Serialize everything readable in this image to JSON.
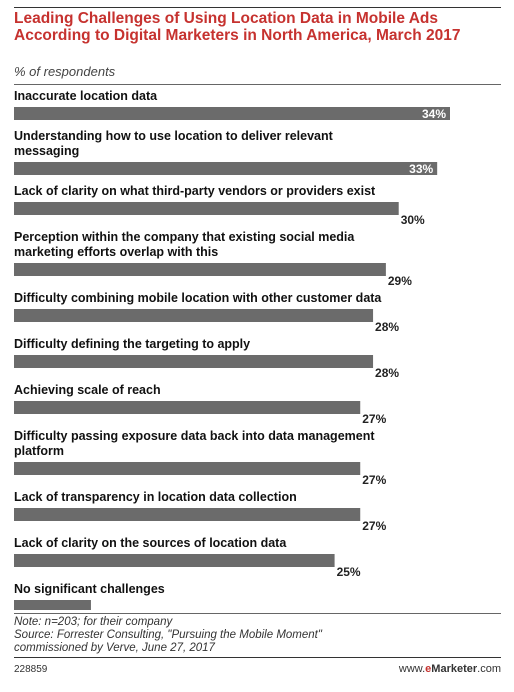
{
  "header": {
    "title": "Leading Challenges of Using Location Data in Mobile Ads According to Digital Marketers in North America, March 2017",
    "subtitle": "% of respondents"
  },
  "footer": {
    "note_line1": "Note: n=203; for their company",
    "note_line2": "Source: Forrester Consulting, \"Pursuing the Mobile Moment\"",
    "note_line3": "commissioned by Verve, June 27, 2017",
    "chart_id": "228859",
    "brand_prefix": "www.",
    "brand_e": "e",
    "brand_name": "Marketer",
    "brand_suffix": ".com"
  },
  "colors": {
    "title": "#c6322f",
    "bar": "#6b6b6b",
    "bar_label_inside": "#ffffff",
    "bar_label_outside": "#222222"
  },
  "chart_data": {
    "type": "bar",
    "orientation": "horizontal",
    "categories": [
      [
        "Inaccurate location data"
      ],
      [
        "Understanding how to use location to deliver relevant",
        "messaging"
      ],
      [
        "Lack of clarity on what third-party vendors or providers exist"
      ],
      [
        "Perception within the company that existing social media",
        "marketing efforts overlap with this"
      ],
      [
        "Difficulty combining mobile location with other customer data"
      ],
      [
        "Difficulty defining the targeting to apply"
      ],
      [
        "Achieving scale of reach"
      ],
      [
        "Difficulty passing exposure data back into data management",
        "platform"
      ],
      [
        "Lack of transparency in location data collection"
      ],
      [
        "Lack of clarity on the sources of location data"
      ],
      [
        "No significant challenges"
      ]
    ],
    "values": [
      34,
      33,
      30,
      29,
      28,
      28,
      27,
      27,
      27,
      25,
      6
    ],
    "value_labels": [
      "34%",
      "33%",
      "30%",
      "29%",
      "28%",
      "28%",
      "27%",
      "27%",
      "27%",
      "25%",
      "6%"
    ],
    "unit": "%",
    "xlim": [
      0,
      34
    ],
    "grid": false,
    "legend": "none"
  }
}
